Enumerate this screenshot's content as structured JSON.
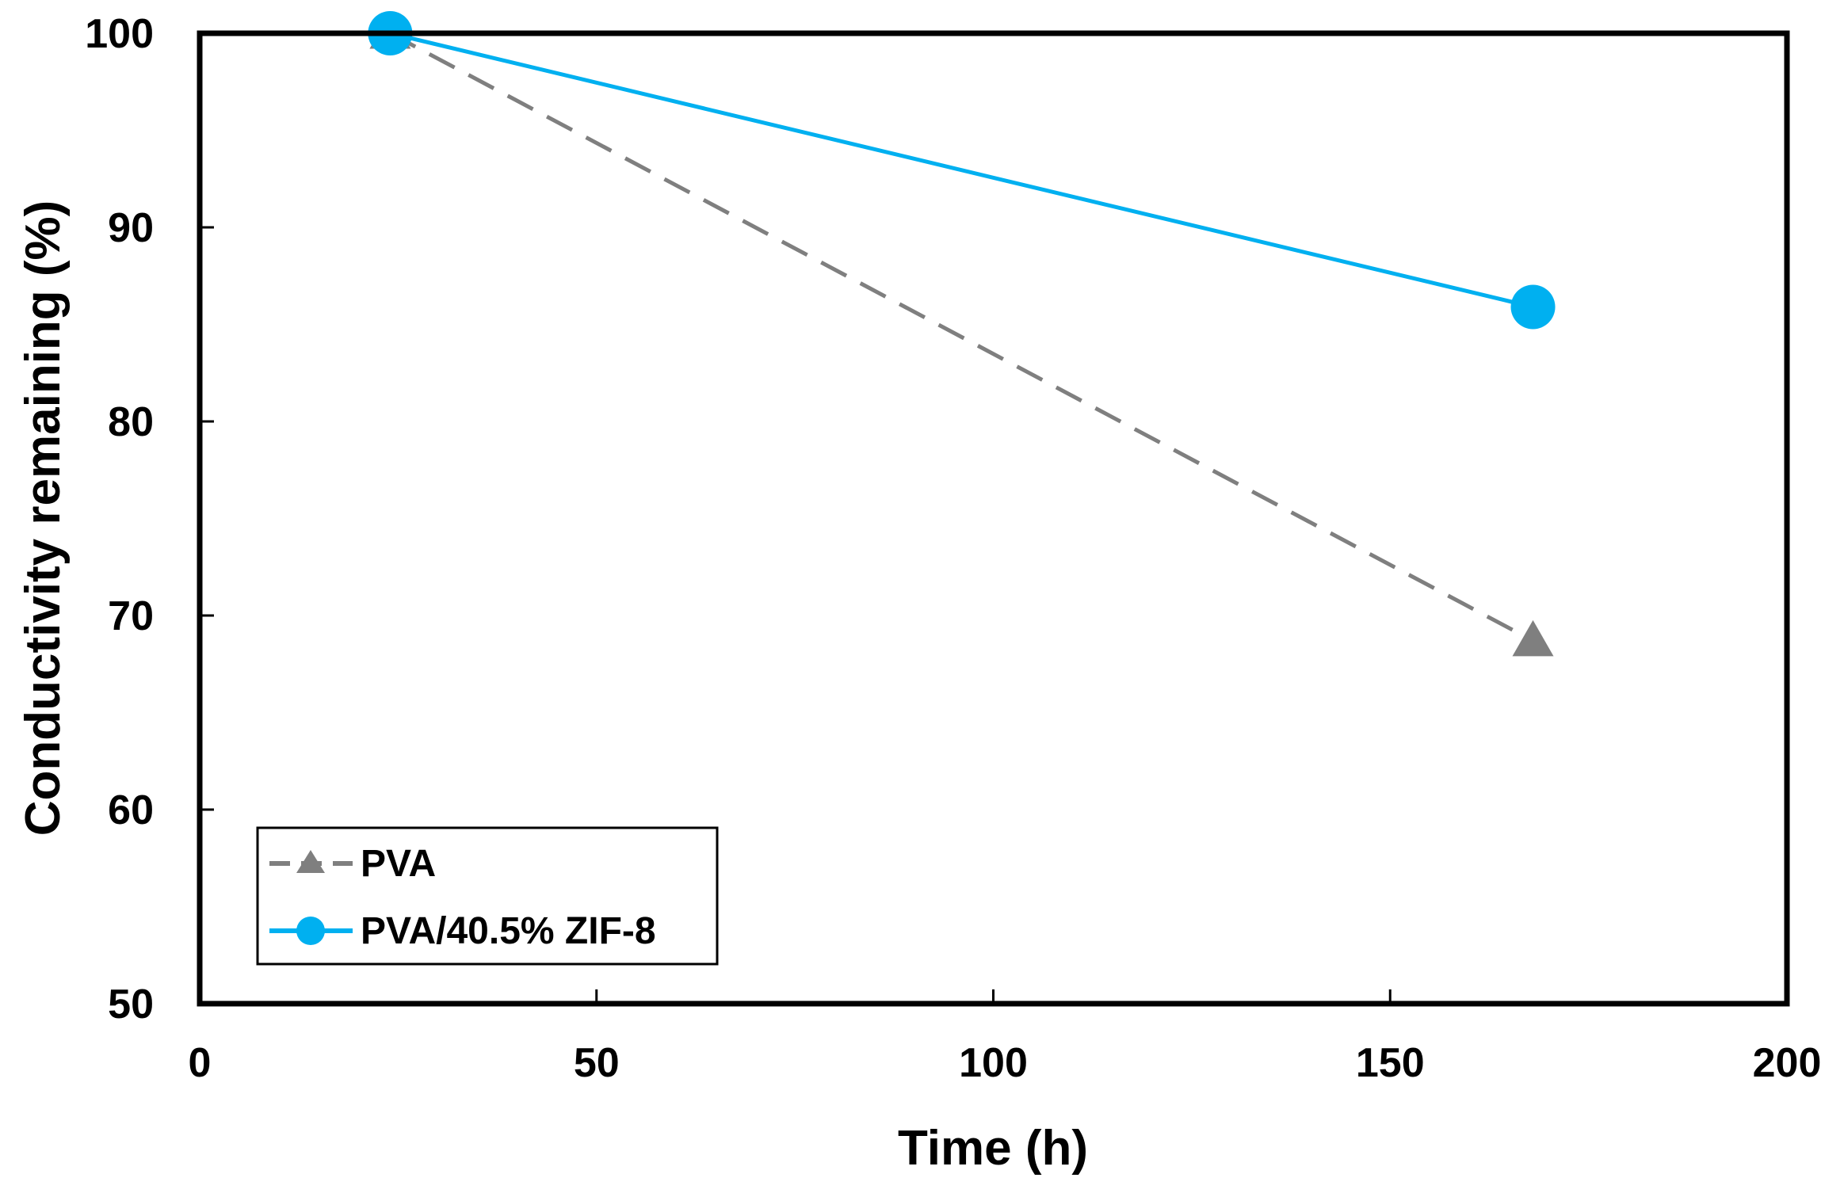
{
  "chart_data": {
    "type": "line",
    "title": "",
    "xlabel": "Time (h)",
    "ylabel": "Conductivity remaining (%)",
    "xlim": [
      0,
      200
    ],
    "ylim": [
      50,
      100
    ],
    "xticks": [
      0,
      50,
      100,
      150,
      200
    ],
    "yticks": [
      50,
      60,
      70,
      80,
      90,
      100
    ],
    "xtick_labels": [
      "0",
      "50",
      "100",
      "150",
      "200"
    ],
    "ytick_labels": [
      "50",
      "60",
      "70",
      "80",
      "90",
      "100"
    ],
    "grid": false,
    "legend_position": "bottom-left",
    "series": [
      {
        "name": "PVA",
        "x": [
          24,
          168
        ],
        "values": [
          100,
          68.7
        ],
        "color": "#7f7f7f",
        "line_style": "dashed",
        "marker": "triangle"
      },
      {
        "name": "PVA/40.5% ZIF-8",
        "x": [
          24,
          168
        ],
        "values": [
          100,
          85.9
        ],
        "color": "#00b0f0",
        "line_style": "solid",
        "marker": "circle"
      }
    ]
  }
}
